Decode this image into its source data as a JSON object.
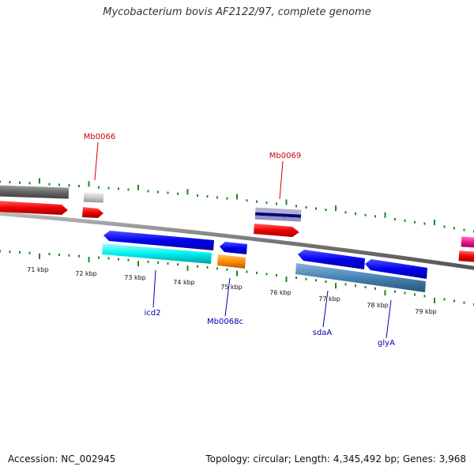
{
  "title": "Mycobacterium bovis AF2122/97, complete genome",
  "footer": {
    "accession": "Accession: NC_002945",
    "summary": "Topology: circular; Length: 4,345,492 bp; Genes: 3,968"
  },
  "colors": {
    "backbone": "#808080",
    "tick": "#1a8a1a",
    "gene_label_forward": "#cc0000",
    "gene_label_reverse": "#0000aa",
    "red": "#ee0000",
    "blue": "#0000ee",
    "cyan": "#00ffff",
    "orange": "#ff8c00",
    "steel": "#4682b4",
    "grey_dark": "#666666",
    "grey_light": "#c8c8c8",
    "navy": "#000080",
    "magenta": "#ee1493"
  },
  "kbp_labels": [
    "71 kbp",
    "72 kbp",
    "73 kbp",
    "74 kbp",
    "75 kbp",
    "76 kbp",
    "77 kbp",
    "78 kbp",
    "79 kbp"
  ],
  "gene_labels": [
    {
      "id": "mb0066",
      "text": "Mb0066",
      "strand": "forward"
    },
    {
      "id": "mb0069",
      "text": "Mb0069",
      "strand": "forward"
    },
    {
      "id": "icd2",
      "text": "icd2",
      "strand": "reverse"
    },
    {
      "id": "mb0068c",
      "text": "Mb0068c",
      "strand": "reverse"
    },
    {
      "id": "sdaa",
      "text": "sdaA",
      "strand": "reverse"
    },
    {
      "id": "glya",
      "text": "glyA",
      "strand": "reverse"
    }
  ]
}
